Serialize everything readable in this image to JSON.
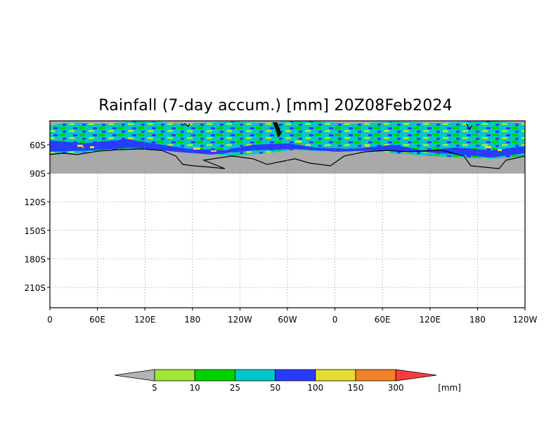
{
  "title": "Rainfall (7-day accum.) [mm] 20Z08Feb2024",
  "x_ticks": [
    "0",
    "60E",
    "120E",
    "180",
    "120W",
    "60W",
    "0",
    "60E",
    "120E",
    "180",
    "120W"
  ],
  "y_ticks": [
    "60S",
    "90S",
    "120S",
    "150S",
    "180S",
    "210S"
  ],
  "colorbar": {
    "labels": [
      "5",
      "10",
      "25",
      "50",
      "100",
      "150",
      "300"
    ],
    "unit": "[mm]",
    "colors": {
      "under": "#b4b4b4",
      "bins": [
        "#a0e632",
        "#00d200",
        "#00c8c8",
        "#283cff",
        "#e6dc32",
        "#f08228",
        "#fa3c3c"
      ]
    }
  },
  "map_colors": {
    "land": "#a9a9a9",
    "ocean_band": [
      "#00c8c8",
      "#00d200",
      "#a0e632",
      "#283cff"
    ],
    "coast": "#000000"
  }
}
